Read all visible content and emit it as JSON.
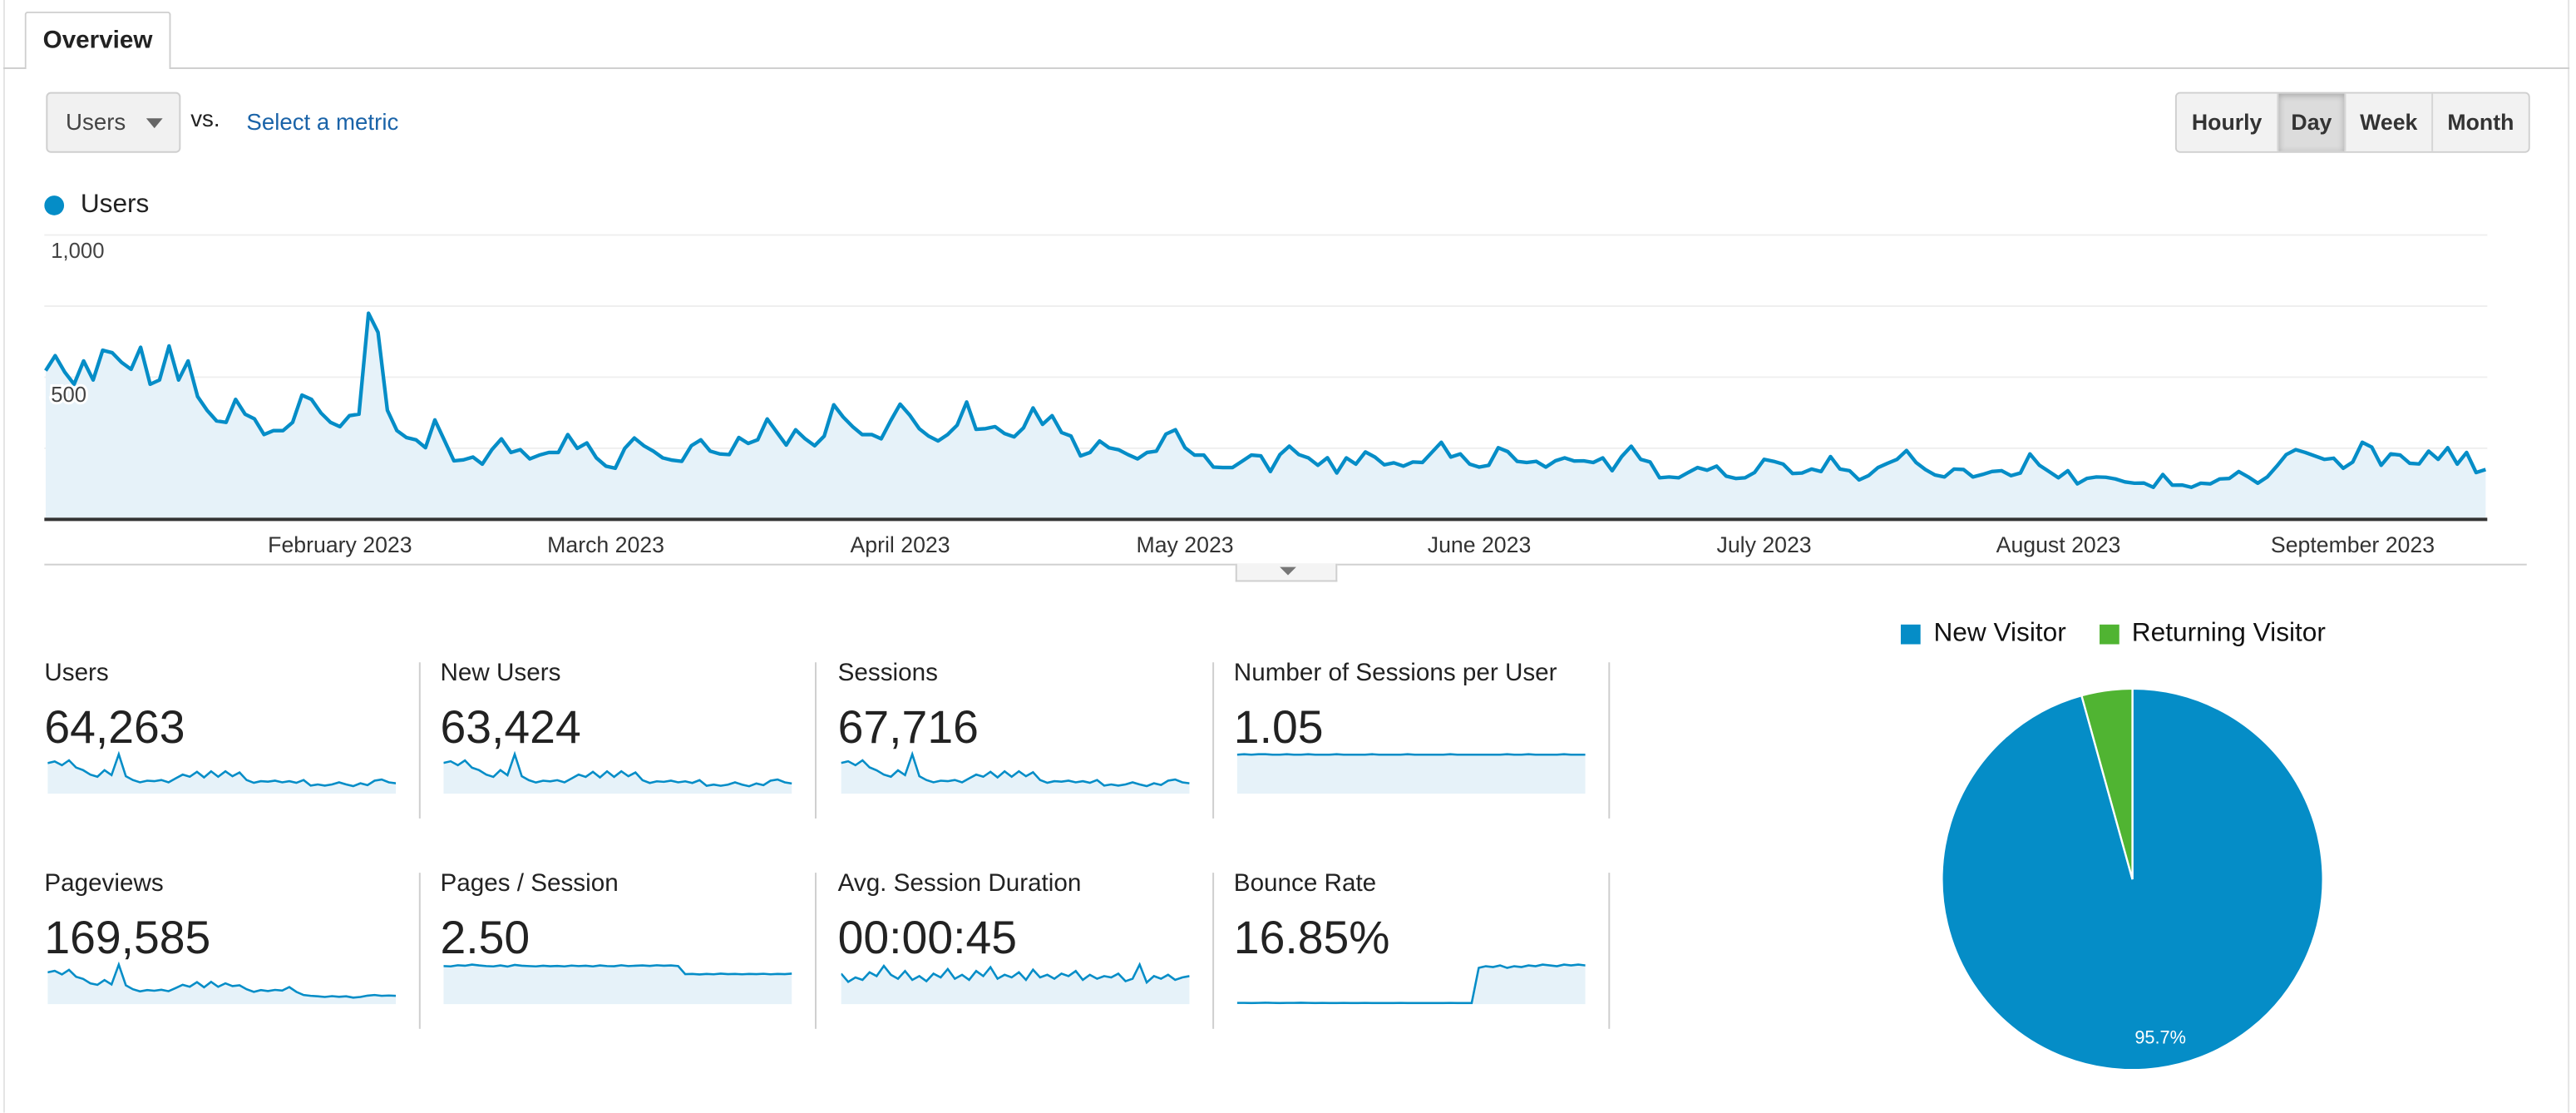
{
  "tabs": [
    {
      "label": "Overview",
      "active": true
    }
  ],
  "metric_selector": {
    "selected": "Users",
    "vs_label": "vs.",
    "compare_link": "Select a metric"
  },
  "granularity": {
    "options": [
      "Hourly",
      "Day",
      "Week",
      "Month"
    ],
    "selected": "Day"
  },
  "colors": {
    "primary": "#058dc7",
    "fill": "#e6f2f9",
    "secondary": "#50b432"
  },
  "chart_data": [
    {
      "type": "area",
      "title": "",
      "legend": [
        "Users"
      ],
      "legend_position": "top-left",
      "ylabel": "",
      "ylim": [
        0,
        1000
      ],
      "y_ticks": [
        {
          "value": 1000,
          "label": "1,000"
        },
        {
          "value": 500,
          "label": "500"
        }
      ],
      "gridlines": [
        250,
        500,
        750,
        1000
      ],
      "x_ticks": [
        {
          "day_index": 31,
          "label": "February 2023"
        },
        {
          "day_index": 59,
          "label": "March 2023"
        },
        {
          "day_index": 90,
          "label": "April 2023"
        },
        {
          "day_index": 120,
          "label": "May 2023"
        },
        {
          "day_index": 151,
          "label": "June 2023"
        },
        {
          "day_index": 181,
          "label": "July 2023"
        },
        {
          "day_index": 212,
          "label": "August 2023"
        },
        {
          "day_index": 243,
          "label": "September 2023"
        }
      ],
      "series": [
        {
          "name": "Users",
          "values": [
            523,
            576,
            518,
            475,
            557,
            490,
            595,
            586,
            552,
            528,
            605,
            475,
            490,
            610,
            490,
            557,
            432,
            384,
            346,
            341,
            422,
            370,
            353,
            298,
            312,
            312,
            341,
            437,
            422,
            374,
            341,
            326,
            365,
            370,
            725,
            658,
            384,
            312,
            288,
            280,
            252,
            350,
            278,
            206,
            209,
            219,
            194,
            245,
            283,
            235,
            245,
            213,
            226,
            235,
            235,
            298,
            250,
            269,
            216,
            187,
            180,
            250,
            286,
            259,
            240,
            216,
            208,
            204,
            259,
            280,
            240,
            230,
            228,
            288,
            267,
            280,
            353,
            307,
            261,
            315,
            283,
            259,
            293,
            403,
            360,
            326,
            298,
            298,
            283,
            346,
            405,
            367,
            319,
            293,
            276,
            298,
            331,
            413,
            317,
            319,
            326,
            302,
            290,
            322,
            392,
            334,
            365,
            305,
            293,
            223,
            235,
            276,
            252,
            245,
            228,
            213,
            235,
            240,
            300,
            315,
            252,
            226,
            226,
            184,
            182,
            182,
            204,
            226,
            223,
            168,
            228,
            257,
            228,
            216,
            190,
            217,
            163,
            216,
            194,
            237,
            219,
            192,
            199,
            187,
            202,
            200,
            235,
            271,
            219,
            230,
            194,
            184,
            190,
            252,
            238,
            204,
            200,
            204,
            184,
            206,
            216,
            205,
            206,
            200,
            216,
            171,
            221,
            257,
            211,
            202,
            146,
            149,
            146,
            165,
            182,
            173,
            187,
            152,
            144,
            146,
            165,
            211,
            204,
            194,
            161,
            163,
            177,
            168,
            221,
            177,
            171,
            139,
            154,
            182,
            197,
            211,
            242,
            200,
            175,
            156,
            149,
            177,
            175,
            149,
            158,
            168,
            171,
            154,
            163,
            230,
            190,
            168,
            146,
            171,
            125,
            144,
            149,
            148,
            142,
            132,
            127,
            128,
            113,
            158,
            120,
            121,
            113,
            127,
            125,
            142,
            144,
            168,
            149,
            127,
            149,
            187,
            228,
            245,
            235,
            223,
            211,
            215,
            180,
            202,
            271,
            254,
            190,
            230,
            226,
            197,
            195,
            240,
            211,
            252,
            194,
            235,
            165,
            175
          ]
        }
      ]
    },
    {
      "type": "pie",
      "legend": [
        "New Visitor",
        "Returning Visitor"
      ],
      "legend_position": "top",
      "slices": [
        {
          "label": "New Visitor",
          "value": 95.7,
          "display": "95.7%"
        },
        {
          "label": "Returning Visitor",
          "value": 4.3
        }
      ]
    }
  ],
  "metrics": [
    {
      "label": "Users",
      "value": "64,263",
      "spark": [
        560,
        590,
        520,
        610,
        480,
        430,
        350,
        310,
        430,
        340,
        720,
        320,
        250,
        210,
        240,
        230,
        250,
        210,
        280,
        350,
        310,
        400,
        300,
        410,
        310,
        410,
        320,
        390,
        250,
        200,
        230,
        220,
        240,
        210,
        230,
        200,
        250,
        150,
        170,
        150,
        170,
        210,
        170,
        140,
        190,
        160,
        240,
        260,
        210,
        190
      ]
    },
    {
      "label": "New Users",
      "value": "63,424",
      "spark": [
        555,
        585,
        515,
        600,
        470,
        425,
        345,
        305,
        425,
        335,
        712,
        315,
        245,
        205,
        236,
        226,
        246,
        206,
        276,
        345,
        305,
        396,
        296,
        405,
        305,
        405,
        315,
        385,
        246,
        196,
        226,
        216,
        236,
        206,
        226,
        196,
        246,
        146,
        166,
        146,
        166,
        206,
        166,
        136,
        186,
        156,
        236,
        256,
        206,
        186
      ]
    },
    {
      "label": "Sessions",
      "value": "67,716",
      "spark": [
        590,
        620,
        545,
        640,
        505,
        450,
        368,
        325,
        450,
        358,
        755,
        336,
        262,
        220,
        252,
        242,
        262,
        220,
        295,
        368,
        325,
        420,
        315,
        430,
        325,
        430,
        336,
        410,
        262,
        210,
        242,
        231,
        252,
        220,
        242,
        210,
        262,
        158,
        178,
        158,
        178,
        220,
        178,
        147,
        200,
        168,
        252,
        273,
        220,
        200
      ]
    },
    {
      "label": "Number of Sessions per User",
      "value": "1.05",
      "spark": [
        1.05,
        1.06,
        1.05,
        1.06,
        1.06,
        1.05,
        1.05,
        1.06,
        1.05,
        1.05,
        1.06,
        1.05,
        1.05,
        1.05,
        1.06,
        1.05,
        1.05,
        1.05,
        1.05,
        1.06,
        1.05,
        1.05,
        1.05,
        1.05,
        1.06,
        1.05,
        1.05,
        1.05,
        1.05,
        1.05,
        1.06,
        1.05,
        1.05,
        1.05,
        1.05,
        1.05,
        1.05,
        1.05,
        1.06,
        1.05,
        1.05,
        1.06,
        1.05,
        1.05,
        1.05,
        1.05,
        1.06,
        1.05,
        1.05,
        1.05
      ]
    },
    {
      "label": "Pageviews",
      "value": "169,585",
      "spark": [
        1450,
        1520,
        1350,
        1560,
        1250,
        1150,
        950,
        880,
        1100,
        900,
        1800,
        860,
        680,
        580,
        640,
        610,
        660,
        590,
        730,
        880,
        790,
        1000,
        770,
        1020,
        790,
        950,
        820,
        860,
        680,
        560,
        640,
        600,
        650,
        620,
        780,
        560,
        420,
        380,
        360,
        330,
        370,
        340,
        360,
        300,
        330,
        390,
        420,
        380,
        400,
        380
      ]
    },
    {
      "label": "Pages / Session",
      "value": "2.50",
      "spark": [
        2.72,
        2.7,
        2.78,
        2.74,
        2.82,
        2.76,
        2.72,
        2.7,
        2.76,
        2.68,
        2.8,
        2.74,
        2.72,
        2.7,
        2.74,
        2.71,
        2.73,
        2.7,
        2.75,
        2.72,
        2.74,
        2.7,
        2.76,
        2.72,
        2.71,
        2.78,
        2.72,
        2.74,
        2.76,
        2.73,
        2.78,
        2.74,
        2.76,
        2.72,
        2.14,
        2.16,
        2.12,
        2.15,
        2.13,
        2.18,
        2.14,
        2.16,
        2.13,
        2.15,
        2.14,
        2.17,
        2.13,
        2.15,
        2.14,
        2.18
      ]
    },
    {
      "label": "Avg. Session Duration",
      "value": "00:00:45",
      "spark": [
        48,
        35,
        42,
        38,
        50,
        44,
        60,
        46,
        40,
        52,
        38,
        44,
        36,
        48,
        42,
        55,
        40,
        46,
        38,
        52,
        44,
        58,
        40,
        46,
        42,
        50,
        38,
        54,
        42,
        46,
        40,
        48,
        44,
        52,
        38,
        46,
        40,
        44,
        42,
        48,
        36,
        40,
        62,
        34,
        44,
        40,
        46,
        38,
        42,
        44
      ]
    },
    {
      "label": "Bounce Rate",
      "value": "16.85%",
      "spark": [
        1.6,
        1.7,
        1.5,
        1.6,
        1.8,
        1.6,
        1.5,
        1.7,
        1.6,
        1.9,
        1.6,
        1.5,
        1.6,
        1.5,
        1.5,
        1.6,
        1.5,
        1.5,
        1.6,
        1.5,
        1.5,
        1.5,
        1.5,
        1.6,
        1.5,
        1.5,
        1.5,
        1.5,
        1.5,
        1.5,
        1.6,
        1.5,
        1.5,
        1.5,
        46,
        48,
        47,
        49,
        46,
        48,
        47,
        49,
        48,
        50,
        49,
        48,
        50,
        49,
        50,
        49
      ]
    }
  ]
}
